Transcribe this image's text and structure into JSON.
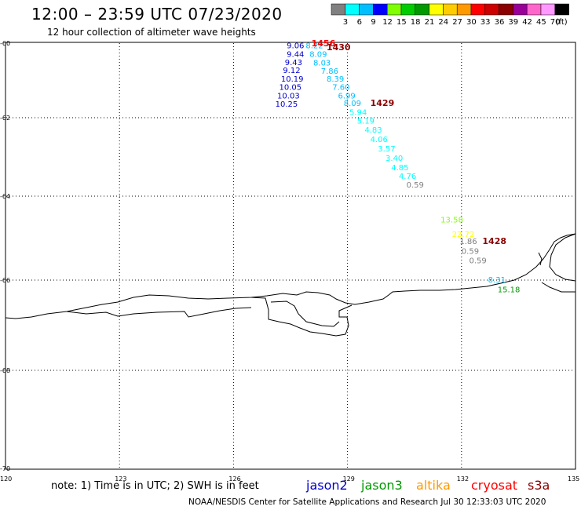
{
  "title": "12:00 – 23:59 UTC 07/23/2020",
  "subtitle": "12 hour collection of altimeter wave heights",
  "note": "note:  1) Time is in UTC;  2) SWH is in feet",
  "credit": "NOAA/NESDIS Center for Satellite Applications and Research    Jul 30 12:33:03 UTC 2020",
  "satellites": [
    {
      "name": "jason2",
      "color": "#0000cc"
    },
    {
      "name": "jason3",
      "color": "#009900"
    },
    {
      "name": "altika",
      "color": "#ff9900"
    },
    {
      "name": "cryosat",
      "color": "#ff0000"
    },
    {
      "name": "s3a",
      "color": "#8b0000"
    }
  ],
  "color_scale": {
    "unit": "(ft)",
    "labels": [
      "3",
      "6",
      "9",
      "12",
      "15",
      "18",
      "21",
      "24",
      "27",
      "30",
      "33",
      "36",
      "39",
      "42",
      "45",
      "70"
    ],
    "colors": [
      "#808080",
      "#00ffff",
      "#00bfff",
      "#0000ff",
      "#7fff00",
      "#00cc00",
      "#009900",
      "#ffff00",
      "#ffcc00",
      "#ff9900",
      "#ff0000",
      "#cc0000",
      "#8b0000",
      "#990099",
      "#ff66cc",
      "#ff99ff",
      "#000000"
    ]
  },
  "axes": {
    "lon_labels": [
      "120",
      "123",
      "126",
      "129",
      "132",
      "135"
    ],
    "lat_labels": [
      "-60",
      "-62",
      "-64",
      "-66",
      "-68",
      "-70"
    ],
    "lon_values": [
      120,
      123,
      126,
      129,
      132,
      135
    ],
    "lat_values": [
      -60,
      -62,
      -64,
      -66,
      -68,
      -70
    ]
  },
  "observations": [
    {
      "text": "9.06",
      "lon": 127.4,
      "lat": -60.05,
      "color": "#0000cc"
    },
    {
      "text": "9.44",
      "lon": 127.4,
      "lat": -60.28,
      "color": "#0000cc"
    },
    {
      "text": "9.43",
      "lon": 127.35,
      "lat": -60.5,
      "color": "#0000cc"
    },
    {
      "text": "9.12",
      "lon": 127.3,
      "lat": -60.72,
      "color": "#0000cc"
    },
    {
      "text": "10.19",
      "lon": 127.25,
      "lat": -60.95,
      "color": "#0000cc"
    },
    {
      "text": "10.05",
      "lon": 127.2,
      "lat": -61.17,
      "color": "#0000cc"
    },
    {
      "text": "10.03",
      "lon": 127.15,
      "lat": -61.4,
      "color": "#0000cc"
    },
    {
      "text": "10.25",
      "lon": 127.1,
      "lat": -61.62,
      "color": "#0000cc"
    },
    {
      "text": "8.22",
      "lon": 127.9,
      "lat": -60.05,
      "color": "#00bfff"
    },
    {
      "text": "8.09",
      "lon": 128.0,
      "lat": -60.28,
      "color": "#00bfff"
    },
    {
      "text": "8.03",
      "lon": 128.1,
      "lat": -60.52,
      "color": "#00bfff"
    },
    {
      "text": "7.86",
      "lon": 128.3,
      "lat": -60.74,
      "color": "#00bfff"
    },
    {
      "text": "8.39",
      "lon": 128.45,
      "lat": -60.95,
      "color": "#00bfff"
    },
    {
      "text": "7.60",
      "lon": 128.6,
      "lat": -61.17,
      "color": "#00bfff"
    },
    {
      "text": "6.99",
      "lon": 128.75,
      "lat": -61.4,
      "color": "#00bfff"
    },
    {
      "text": "8.09",
      "lon": 128.9,
      "lat": -61.6,
      "color": "#00bfff"
    },
    {
      "text": "5.94",
      "lon": 129.05,
      "lat": -61.84,
      "color": "#00ffff"
    },
    {
      "text": "5.19",
      "lon": 129.25,
      "lat": -62.07,
      "color": "#00ffff"
    },
    {
      "text": "4.83",
      "lon": 129.45,
      "lat": -62.3,
      "color": "#00ffff"
    },
    {
      "text": "4.06",
      "lon": 129.6,
      "lat": -62.54,
      "color": "#00ffff"
    },
    {
      "text": "3.57",
      "lon": 129.8,
      "lat": -62.78,
      "color": "#00ffff"
    },
    {
      "text": "3.40",
      "lon": 130.0,
      "lat": -63.02,
      "color": "#00ffff"
    },
    {
      "text": "4.85",
      "lon": 130.15,
      "lat": -63.26,
      "color": "#00ffff"
    },
    {
      "text": "4.76",
      "lon": 130.35,
      "lat": -63.48,
      "color": "#00ffff"
    },
    {
      "text": "0.59",
      "lon": 130.55,
      "lat": -63.7,
      "color": "#808080"
    },
    {
      "text": "13.58",
      "lon": 131.45,
      "lat": -64.55,
      "color": "#7fff00"
    },
    {
      "text": "22.72",
      "lon": 131.75,
      "lat": -64.9,
      "color": "#ffff00"
    },
    {
      "text": "1.86",
      "lon": 131.95,
      "lat": -65.07,
      "color": "#808080"
    },
    {
      "text": "0.59",
      "lon": 132.0,
      "lat": -65.3,
      "color": "#808080"
    },
    {
      "text": "0.59",
      "lon": 132.2,
      "lat": -65.52,
      "color": "#808080"
    },
    {
      "text": "8.31",
      "lon": 132.7,
      "lat": -65.98,
      "color": "#00bfff"
    },
    {
      "text": "15.18",
      "lon": 132.95,
      "lat": -66.2,
      "color": "#009900"
    }
  ],
  "times": [
    {
      "text": "1456",
      "lon": 128.05,
      "lat": -59.98,
      "color": "#ff0000"
    },
    {
      "text": "1430",
      "lon": 128.45,
      "lat": -60.1,
      "color": "#8b0000"
    },
    {
      "text": "1429",
      "lon": 129.6,
      "lat": -61.6,
      "color": "#8b0000"
    },
    {
      "text": "1428",
      "lon": 132.55,
      "lat": -65.07,
      "color": "#8b0000"
    }
  ]
}
